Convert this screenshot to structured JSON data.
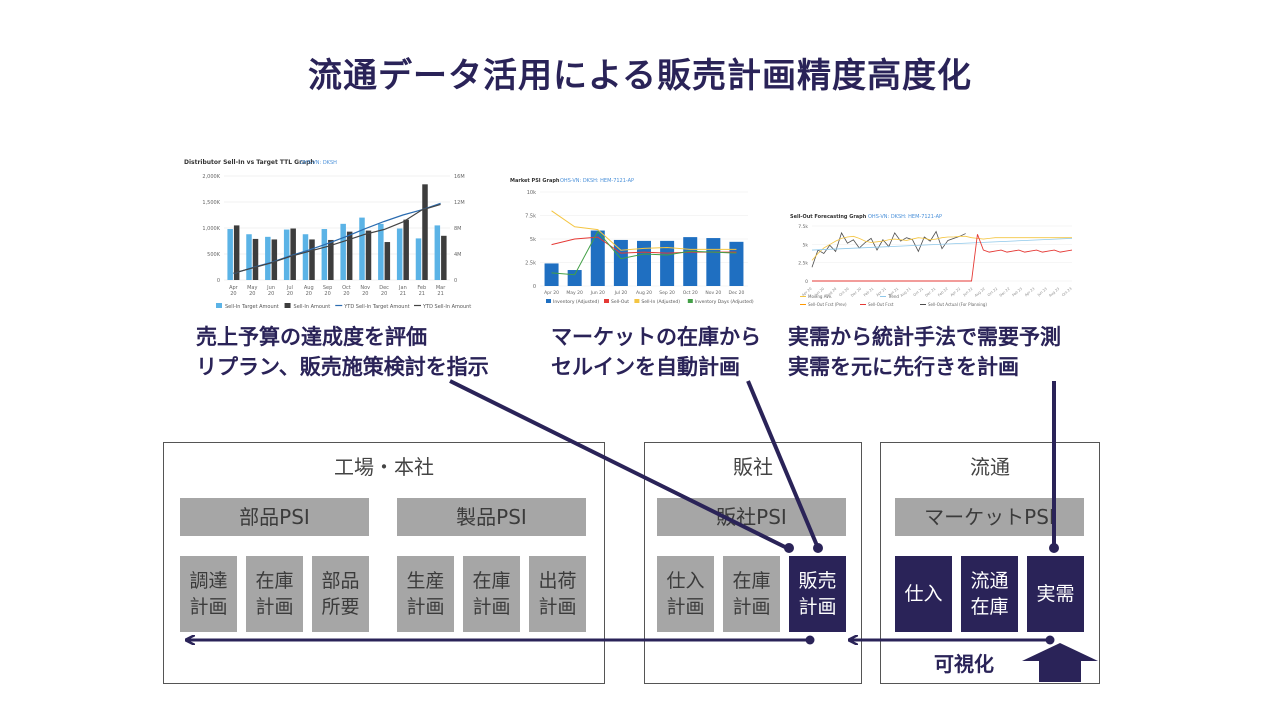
{
  "title": "流通データ活用による販売計画精度高度化",
  "captions": {
    "c1_line1": "売上予算の達成度を評価",
    "c1_line2": "リプラン、販売施策検討を指示",
    "c2_line1": "マーケットの在庫から",
    "c2_line2": "セルインを自動計画",
    "c3_line1": "実需から統計手法で需要予測",
    "c3_line2": "実需を元に先行きを計画"
  },
  "sections": {
    "factory": {
      "label": "工場・本社",
      "psi_left": "部品PSI",
      "psi_right": "製品PSI",
      "plans": [
        [
          "調達",
          "計画"
        ],
        [
          "在庫",
          "計画"
        ],
        [
          "部品",
          "所要"
        ],
        [
          "生産",
          "計画"
        ],
        [
          "在庫",
          "計画"
        ],
        [
          "出荷",
          "計画"
        ]
      ]
    },
    "sales": {
      "label": "販社",
      "psi": "販社PSI",
      "plans": [
        [
          "仕入",
          "計画"
        ],
        [
          "在庫",
          "計画"
        ],
        [
          "販売",
          "計画"
        ]
      ]
    },
    "distribution": {
      "label": "流通",
      "psi": "マーケットPSI",
      "plans": [
        [
          "仕入"
        ],
        [
          "流通",
          "在庫"
        ],
        [
          "実需"
        ]
      ]
    }
  },
  "visualize_label": "可視化",
  "colors": {
    "navy": "#2a2358",
    "gray": "#a6a6a6",
    "bar_light": "#5bb3e6",
    "bar_dark": "#3d3d3d",
    "bar_blue": "#1f6fc1"
  },
  "chart_data": [
    {
      "type": "bar",
      "title": "Distributor Sell-In vs Target TTL Graph",
      "subtitle": "OHS-VN: DKSH",
      "categories": [
        "Apr 20",
        "May 20",
        "Jun 20",
        "Jul 20",
        "Aug 20",
        "Sep 20",
        "Oct 20",
        "Nov 20",
        "Dec 20",
        "Jan 21",
        "Feb 21",
        "Mar 21"
      ],
      "y_ticks_left": [
        "2,000K",
        "1,500K",
        "1,000K",
        "500K",
        "0"
      ],
      "y_ticks_right": [
        "16M",
        "12M",
        "8M",
        "4M",
        "0"
      ],
      "ylim": [
        0,
        2000
      ],
      "series": [
        {
          "name": "Sell-In Target Amount",
          "values": [
            980,
            880,
            830,
            970,
            880,
            980,
            1080,
            1200,
            1080,
            990,
            800,
            1050
          ]
        },
        {
          "name": "Sell-In Amount",
          "values": [
            1050,
            790,
            780,
            990,
            780,
            770,
            930,
            950,
            730,
            1160,
            1840,
            850
          ]
        },
        {
          "name": "YTD Sell-In Target Amount",
          "values": [
            1,
            1.9,
            2.7,
            3.7,
            4.6,
            5.6,
            6.7,
            7.9,
            9,
            10,
            10.8,
            11.8
          ]
        },
        {
          "name": "YTD Sell-In Amount",
          "values": [
            1.05,
            1.84,
            2.62,
            3.61,
            4.39,
            5.16,
            6.09,
            7.04,
            7.77,
            8.93,
            10.77,
            11.62
          ]
        }
      ]
    },
    {
      "type": "bar",
      "title": "Market PSI Graph",
      "subtitle": "OHS-VN: DKSH: HEM-7121-AP",
      "categories": [
        "Apr 20",
        "May 20",
        "Jun 20",
        "Jul 20",
        "Aug 20",
        "Sep 20",
        "Oct 20",
        "Nov 20",
        "Dec 20"
      ],
      "y_ticks_left": [
        "10k",
        "7.5k",
        "5k",
        "2.5k",
        "0"
      ],
      "ylim": [
        0,
        10000
      ],
      "series": [
        {
          "name": "Inventory (Adjusted)",
          "values": [
            2400,
            1700,
            5900,
            4900,
            4800,
            4800,
            5200,
            5100,
            4700
          ]
        },
        {
          "name": "Sell-Out",
          "values": [
            4400,
            5000,
            5200,
            3500,
            3600,
            3500,
            3600,
            3600,
            3600
          ]
        },
        {
          "name": "Sell-In (Adjusted)",
          "values": [
            8000,
            6300,
            6000,
            3800,
            4000,
            4100,
            3900,
            3900,
            3900
          ]
        },
        {
          "name": "Inventory Days (Adjusted)",
          "values": [
            1400,
            1200,
            5800,
            2900,
            3400,
            3300,
            3700,
            3600,
            3500
          ]
        }
      ]
    },
    {
      "type": "line",
      "title": "Sell-Out Forecasting Graph",
      "subtitle": "OHS-VN: DKSH: HEM-7121-AP",
      "y_ticks_left": [
        "7.5k",
        "5k",
        "2.5k",
        "0"
      ],
      "ylim": [
        0,
        8000
      ],
      "series": [
        {
          "name": "Moving Ave."
        },
        {
          "name": "Trend"
        },
        {
          "name": "Sell-Out Fcst (Prev)"
        },
        {
          "name": "Sell-Out Fcst"
        },
        {
          "name": "Sell-Out Actual (For Planning)"
        }
      ]
    }
  ]
}
